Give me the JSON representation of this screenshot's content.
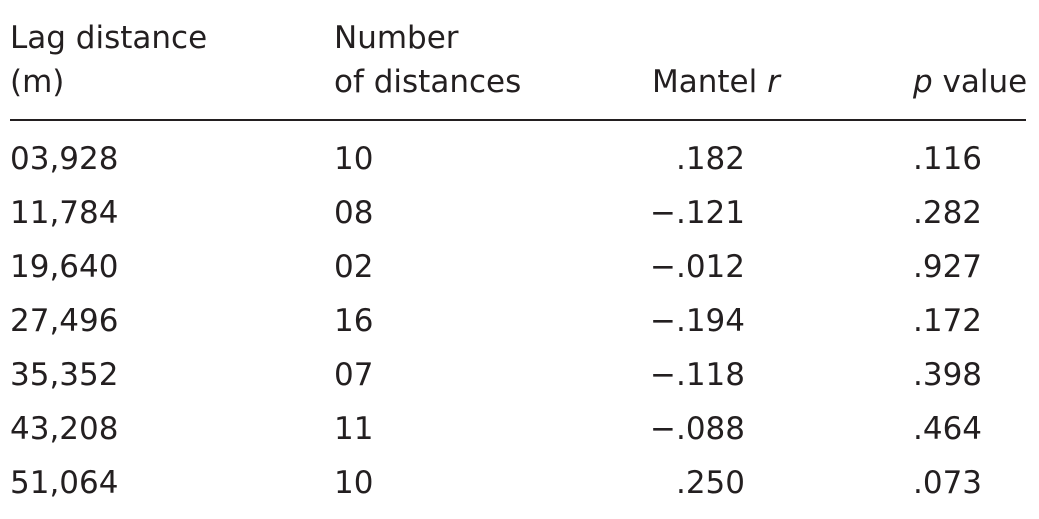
{
  "headers": {
    "lag_line1": "Lag distance",
    "lag_line2": "(m)",
    "num_line1": "Number",
    "num_line2": "of distances",
    "mantel_prefix": "Mantel ",
    "mantel_r": "r",
    "p_italic": "p",
    "p_suffix": " value"
  },
  "rows": [
    {
      "lag": "03,928",
      "num": "10",
      "mantel": ".182",
      "p": ".116"
    },
    {
      "lag": "11,784",
      "num": "08",
      "mantel": "−.121",
      "p": ".282"
    },
    {
      "lag": "19,640",
      "num": "02",
      "mantel": "−.012",
      "p": ".927"
    },
    {
      "lag": "27,496",
      "num": "16",
      "mantel": "−.194",
      "p": ".172"
    },
    {
      "lag": "35,352",
      "num": "07",
      "mantel": "−.118",
      "p": ".398"
    },
    {
      "lag": "43,208",
      "num": "11",
      "mantel": "−.088",
      "p": ".464"
    },
    {
      "lag": "51,064",
      "num": "10",
      "mantel": ".250",
      "p": ".073"
    }
  ]
}
